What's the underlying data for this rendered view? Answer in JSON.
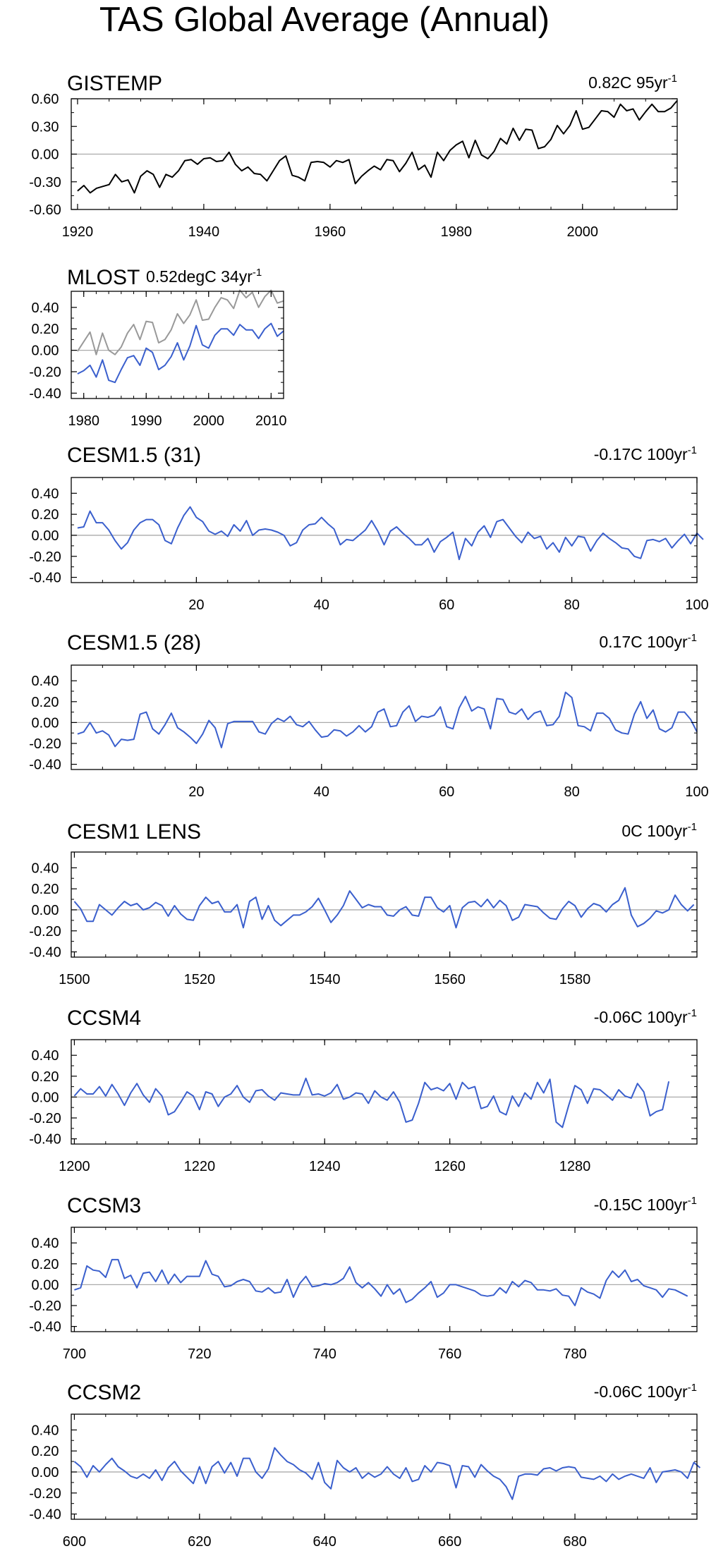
{
  "title": "TAS Global Average (Annual)",
  "colors": {
    "obs": "#000000",
    "obs_grey": "#999999",
    "model": "#3a5fcd",
    "zero": "#aaaaaa",
    "frame": "#000000"
  },
  "chart_data": [
    {
      "id": "gistemp",
      "type": "line",
      "title": "GISTEMP",
      "trend": "0.82C 95yr",
      "x_start": 1920,
      "ylim": [
        -0.6,
        0.6
      ],
      "yticks": [
        "-0.60",
        "-0.30",
        "0.00",
        "0.30",
        "0.60"
      ],
      "xlim": [
        1919,
        2015
      ],
      "xticks": [
        "1920",
        "1940",
        "1960",
        "1980",
        "2000"
      ],
      "series": [
        {
          "name": "GISTEMP",
          "color": "#000000",
          "values": [
            -0.4,
            -0.34,
            -0.42,
            -0.37,
            -0.35,
            -0.33,
            -0.22,
            -0.3,
            -0.28,
            -0.42,
            -0.24,
            -0.18,
            -0.22,
            -0.36,
            -0.22,
            -0.25,
            -0.18,
            -0.07,
            -0.06,
            -0.11,
            -0.05,
            -0.04,
            -0.08,
            -0.07,
            0.02,
            -0.11,
            -0.18,
            -0.14,
            -0.21,
            -0.22,
            -0.29,
            -0.18,
            -0.07,
            -0.02,
            -0.23,
            -0.25,
            -0.29,
            -0.09,
            -0.08,
            -0.09,
            -0.14,
            -0.07,
            -0.09,
            -0.06,
            -0.32,
            -0.24,
            -0.18,
            -0.13,
            -0.17,
            -0.06,
            -0.07,
            -0.19,
            -0.1,
            0.02,
            -0.17,
            -0.12,
            -0.25,
            0.02,
            -0.07,
            0.04,
            0.1,
            0.14,
            -0.04,
            0.15,
            -0.01,
            -0.05,
            0.03,
            0.17,
            0.11,
            0.28,
            0.15,
            0.27,
            0.26,
            0.06,
            0.08,
            0.16,
            0.31,
            0.22,
            0.31,
            0.47,
            0.27,
            0.29,
            0.38,
            0.47,
            0.46,
            0.4,
            0.54,
            0.47,
            0.49,
            0.37,
            0.46,
            0.54,
            0.46,
            0.46,
            0.5,
            0.58
          ]
        },
        {
          "name": "zero",
          "color": "#aaaaaa",
          "values": [
            0,
            0
          ]
        }
      ]
    },
    {
      "id": "mlost",
      "type": "line",
      "title": "MLOST",
      "trend": "0.52degC 34yr",
      "x_start": 1979,
      "ylim": [
        -0.45,
        0.55
      ],
      "yticks": [
        "-0.40",
        "-0.20",
        "0.00",
        "0.20",
        "0.40"
      ],
      "xlim": [
        1978,
        2012
      ],
      "xticks": [
        "1980",
        "1990",
        "2000",
        "2010"
      ],
      "series": [
        {
          "name": "shifted",
          "color": "#999999",
          "values": [
            -0.01,
            0.08,
            0.17,
            -0.04,
            0.16,
            0.0,
            -0.04,
            0.03,
            0.16,
            0.24,
            0.1,
            0.27,
            0.26,
            0.07,
            0.1,
            0.19,
            0.34,
            0.25,
            0.33,
            0.47,
            0.28,
            0.29,
            0.4,
            0.49,
            0.47,
            0.39,
            0.56,
            0.49,
            0.54,
            0.4,
            0.5,
            0.56,
            0.44,
            0.46
          ]
        },
        {
          "name": "MLOST",
          "color": "#3a5fcd",
          "values": [
            -0.22,
            -0.19,
            -0.14,
            -0.25,
            -0.09,
            -0.28,
            -0.3,
            -0.18,
            -0.07,
            -0.05,
            -0.14,
            0.02,
            -0.02,
            -0.18,
            -0.14,
            -0.06,
            0.07,
            -0.09,
            0.04,
            0.23,
            0.05,
            0.02,
            0.14,
            0.2,
            0.2,
            0.14,
            0.24,
            0.19,
            0.19,
            0.11,
            0.2,
            0.25,
            0.13,
            0.18
          ]
        },
        {
          "name": "zero",
          "color": "#aaaaaa",
          "values": [
            0,
            0
          ]
        }
      ]
    },
    {
      "id": "cesm15_31",
      "type": "line",
      "title": "CESM1.5 (31)",
      "trend": "-0.17C 100yr",
      "x_start": 1,
      "ylim": [
        -0.45,
        0.55
      ],
      "yticks": [
        "-0.40",
        "-0.20",
        "0.00",
        "0.20",
        "0.40"
      ],
      "xlim": [
        0,
        100
      ],
      "xticks": [
        "20",
        "40",
        "60",
        "80",
        "100"
      ],
      "series": [
        {
          "name": "CESM1.5 (31)",
          "color": "#3a5fcd",
          "values": [
            0.07,
            0.08,
            0.23,
            0.12,
            0.12,
            0.05,
            -0.05,
            -0.13,
            -0.07,
            0.05,
            0.12,
            0.15,
            0.15,
            0.1,
            -0.05,
            -0.08,
            0.07,
            0.19,
            0.27,
            0.17,
            0.13,
            0.04,
            0.01,
            0.04,
            -0.01,
            0.1,
            0.04,
            0.14,
            0.0,
            0.05,
            0.06,
            0.05,
            0.03,
            0.0,
            -0.1,
            -0.07,
            0.05,
            0.1,
            0.11,
            0.17,
            0.11,
            0.06,
            -0.09,
            -0.04,
            -0.05,
            0.0,
            0.05,
            0.14,
            0.04,
            -0.09,
            0.04,
            0.08,
            0.02,
            -0.03,
            -0.09,
            -0.09,
            -0.03,
            -0.16,
            -0.06,
            -0.02,
            0.03,
            -0.23,
            -0.03,
            -0.1,
            0.03,
            0.09,
            -0.02,
            0.13,
            0.15,
            0.07,
            -0.01,
            -0.07,
            0.03,
            -0.03,
            -0.01,
            -0.13,
            -0.07,
            -0.16,
            -0.02,
            -0.1,
            -0.01,
            -0.02,
            -0.15,
            -0.05,
            0.02,
            -0.03,
            -0.07,
            -0.12,
            -0.13,
            -0.2,
            -0.22,
            -0.05,
            -0.04,
            -0.06,
            -0.03,
            -0.12,
            -0.05,
            0.01,
            -0.08,
            0.02,
            -0.04
          ]
        }
      ]
    },
    {
      "id": "cesm15_28",
      "type": "line",
      "title": "CESM1.5 (28)",
      "trend": "0.17C 100yr",
      "x_start": 1,
      "ylim": [
        -0.45,
        0.55
      ],
      "yticks": [
        "-0.40",
        "-0.20",
        "0.00",
        "0.20",
        "0.40"
      ],
      "xlim": [
        0,
        100
      ],
      "xticks": [
        "20",
        "40",
        "60",
        "80",
        "100"
      ],
      "series": [
        {
          "name": "CESM1.5 (28)",
          "color": "#3a5fcd",
          "values": [
            -0.11,
            -0.09,
            0.0,
            -0.1,
            -0.08,
            -0.12,
            -0.23,
            -0.16,
            -0.17,
            -0.16,
            0.08,
            0.1,
            -0.06,
            -0.11,
            -0.02,
            0.09,
            -0.05,
            -0.09,
            -0.14,
            -0.2,
            -0.11,
            0.02,
            -0.05,
            -0.24,
            -0.01,
            0.01,
            0.01,
            0.01,
            0.01,
            -0.09,
            -0.11,
            -0.01,
            0.04,
            0.01,
            0.06,
            -0.02,
            -0.04,
            0.01,
            -0.07,
            -0.14,
            -0.13,
            -0.07,
            -0.08,
            -0.13,
            -0.09,
            -0.03,
            -0.09,
            -0.04,
            0.1,
            0.13,
            -0.04,
            -0.03,
            0.1,
            0.16,
            0.01,
            0.06,
            0.05,
            0.07,
            0.15,
            -0.04,
            -0.06,
            0.14,
            0.25,
            0.11,
            0.15,
            0.13,
            -0.06,
            0.23,
            0.22,
            0.1,
            0.08,
            0.13,
            0.03,
            0.09,
            0.11,
            -0.03,
            -0.02,
            0.06,
            0.29,
            0.24,
            -0.03,
            -0.04,
            -0.08,
            0.09,
            0.09,
            0.04,
            -0.07,
            -0.1,
            -0.11,
            0.08,
            0.2,
            0.04,
            0.12,
            -0.06,
            -0.09,
            -0.05,
            0.1,
            0.1,
            0.03,
            -0.09
          ]
        }
      ]
    },
    {
      "id": "cesm1_lens",
      "type": "line",
      "title": "CESM1 LENS",
      "trend": "0C 100yr",
      "x_start": 1500,
      "ylim": [
        -0.45,
        0.55
      ],
      "yticks": [
        "-0.40",
        "-0.20",
        "0.00",
        "0.20",
        "0.40"
      ],
      "xlim": [
        1499.5,
        1599.5
      ],
      "xticks": [
        "1500",
        "1520",
        "1540",
        "1560",
        "1580"
      ],
      "series": [
        {
          "name": "CESM1 LENS",
          "color": "#3a5fcd",
          "values": [
            0.08,
            0.01,
            -0.11,
            -0.11,
            0.05,
            0.0,
            -0.05,
            0.02,
            0.08,
            0.04,
            0.06,
            0.0,
            0.02,
            0.07,
            0.04,
            -0.06,
            0.04,
            -0.04,
            -0.09,
            -0.1,
            0.04,
            0.12,
            0.06,
            0.08,
            -0.02,
            -0.02,
            0.05,
            -0.17,
            0.08,
            0.12,
            -0.09,
            0.04,
            -0.1,
            -0.15,
            -0.1,
            -0.05,
            -0.05,
            -0.02,
            0.03,
            0.11,
            0.0,
            -0.12,
            -0.05,
            0.04,
            0.18,
            0.1,
            0.02,
            0.05,
            0.03,
            0.03,
            -0.05,
            -0.06,
            0.0,
            0.03,
            -0.05,
            -0.06,
            0.12,
            0.12,
            0.02,
            -0.02,
            0.04,
            -0.17,
            0.02,
            0.07,
            0.08,
            0.03,
            0.1,
            0.02,
            0.09,
            0.04,
            -0.1,
            -0.07,
            0.05,
            0.04,
            0.03,
            -0.03,
            -0.08,
            -0.09,
            0.01,
            0.08,
            0.04,
            -0.07,
            0.01,
            0.06,
            0.04,
            -0.02,
            0.05,
            0.09,
            0.21,
            -0.05,
            -0.16,
            -0.13,
            -0.08,
            -0.01,
            -0.03,
            0.0,
            0.14,
            0.05,
            -0.01,
            0.05
          ]
        }
      ]
    },
    {
      "id": "ccsm4",
      "type": "line",
      "title": "CCSM4",
      "trend": "-0.06C 100yr",
      "x_start": 1200,
      "ylim": [
        -0.45,
        0.55
      ],
      "yticks": [
        "-0.40",
        "-0.20",
        "0.00",
        "0.20",
        "0.40"
      ],
      "xlim": [
        1199.5,
        1299.5
      ],
      "xticks": [
        "1200",
        "1220",
        "1240",
        "1260",
        "1280"
      ],
      "series": [
        {
          "name": "CCSM4",
          "color": "#3a5fcd",
          "values": [
            0.01,
            0.08,
            0.03,
            0.03,
            0.1,
            0.01,
            0.12,
            0.03,
            -0.08,
            0.04,
            0.13,
            0.02,
            -0.05,
            0.08,
            0.01,
            -0.17,
            -0.14,
            -0.05,
            0.05,
            0.01,
            -0.12,
            0.05,
            0.03,
            -0.09,
            0.0,
            0.03,
            0.11,
            0.0,
            -0.05,
            0.06,
            0.07,
            0.01,
            -0.03,
            0.04,
            0.03,
            0.02,
            0.02,
            0.18,
            0.02,
            0.03,
            0.01,
            0.04,
            0.12,
            -0.02,
            0.0,
            0.04,
            0.03,
            -0.06,
            0.06,
            0.0,
            -0.03,
            0.05,
            -0.05,
            -0.24,
            -0.22,
            -0.06,
            0.14,
            0.07,
            0.09,
            0.06,
            0.13,
            -0.02,
            0.14,
            0.08,
            0.1,
            -0.11,
            -0.09,
            0.01,
            -0.14,
            -0.17,
            0.01,
            -0.09,
            0.04,
            -0.02,
            0.14,
            0.04,
            0.17,
            -0.24,
            -0.29,
            -0.08,
            0.11,
            0.07,
            -0.06,
            0.08,
            0.07,
            0.02,
            -0.03,
            0.07,
            0.01,
            -0.01,
            0.13,
            0.05,
            -0.18,
            -0.14,
            -0.12,
            0.15
          ]
        }
      ]
    },
    {
      "id": "ccsm3",
      "type": "line",
      "title": "CCSM3",
      "trend": "-0.15C 100yr",
      "x_start": 700,
      "ylim": [
        -0.45,
        0.55
      ],
      "yticks": [
        "-0.40",
        "-0.20",
        "0.00",
        "0.20",
        "0.40"
      ],
      "xlim": [
        699.5,
        799.5
      ],
      "xticks": [
        "700",
        "720",
        "740",
        "760",
        "780"
      ],
      "series": [
        {
          "name": "CCSM3",
          "color": "#3a5fcd",
          "values": [
            -0.05,
            -0.03,
            0.18,
            0.14,
            0.13,
            0.07,
            0.24,
            0.24,
            0.06,
            0.09,
            -0.03,
            0.11,
            0.12,
            0.03,
            0.14,
            0.01,
            0.1,
            0.02,
            0.08,
            0.08,
            0.08,
            0.23,
            0.1,
            0.08,
            -0.02,
            -0.01,
            0.03,
            0.05,
            0.03,
            -0.06,
            -0.07,
            -0.03,
            -0.08,
            -0.07,
            0.05,
            -0.12,
            0.01,
            0.08,
            -0.02,
            -0.01,
            0.01,
            0.0,
            0.02,
            0.06,
            0.17,
            0.02,
            -0.03,
            0.02,
            -0.04,
            -0.11,
            0.0,
            -0.09,
            -0.04,
            -0.17,
            -0.14,
            -0.08,
            -0.03,
            0.03,
            -0.12,
            -0.08,
            0.0,
            0.0,
            -0.02,
            -0.04,
            -0.06,
            -0.1,
            -0.11,
            -0.1,
            -0.03,
            -0.08,
            0.03,
            -0.02,
            0.04,
            0.02,
            -0.05,
            -0.05,
            -0.06,
            -0.04,
            -0.1,
            -0.11,
            -0.2,
            -0.03,
            -0.07,
            -0.09,
            -0.13,
            0.04,
            0.13,
            0.07,
            0.14,
            0.03,
            0.05,
            -0.01,
            -0.03,
            -0.05,
            -0.12,
            -0.04,
            -0.05,
            -0.08,
            -0.11
          ]
        }
      ]
    },
    {
      "id": "ccsm2",
      "type": "line",
      "title": "CCSM2",
      "trend": "-0.06C 100yr",
      "x_start": 600,
      "ylim": [
        -0.45,
        0.55
      ],
      "yticks": [
        "-0.40",
        "-0.20",
        "0.00",
        "0.20",
        "0.40"
      ],
      "xlim": [
        599.5,
        699.5
      ],
      "xticks": [
        "600",
        "620",
        "640",
        "660",
        "680"
      ],
      "series": [
        {
          "name": "CCSM2",
          "color": "#3a5fcd",
          "values": [
            0.1,
            0.05,
            -0.05,
            0.06,
            0.0,
            0.07,
            0.13,
            0.05,
            0.01,
            -0.04,
            -0.06,
            -0.02,
            -0.06,
            0.02,
            -0.08,
            0.04,
            0.1,
            0.01,
            -0.05,
            -0.11,
            0.05,
            -0.11,
            0.05,
            0.1,
            -0.01,
            0.09,
            -0.04,
            0.13,
            0.13,
            0.0,
            -0.06,
            0.03,
            0.23,
            0.16,
            0.1,
            0.07,
            0.02,
            -0.01,
            -0.07,
            0.09,
            -0.1,
            -0.16,
            0.11,
            0.04,
            0.0,
            0.04,
            -0.06,
            -0.01,
            -0.05,
            -0.02,
            0.05,
            -0.02,
            -0.06,
            0.04,
            -0.09,
            -0.07,
            0.06,
            0.0,
            0.09,
            0.08,
            0.06,
            -0.15,
            0.06,
            0.05,
            -0.05,
            0.07,
            0.01,
            -0.04,
            -0.07,
            -0.14,
            -0.26,
            -0.04,
            -0.02,
            -0.02,
            -0.03,
            0.03,
            0.04,
            0.01,
            0.04,
            0.05,
            0.04,
            -0.05,
            -0.06,
            -0.07,
            -0.04,
            -0.09,
            -0.02,
            -0.07,
            -0.04,
            -0.02,
            -0.04,
            -0.06,
            0.04,
            -0.1,
            0.0,
            0.01,
            0.02,
            0.0,
            -0.06,
            0.09,
            0.04
          ]
        }
      ]
    }
  ]
}
